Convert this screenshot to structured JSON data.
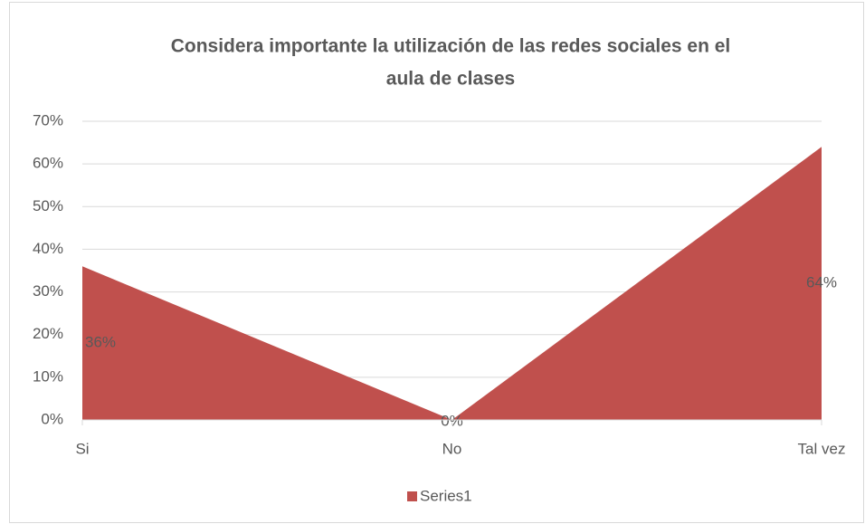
{
  "chart_data": {
    "type": "area",
    "title": [
      "Considera  importante la utilización de las redes sociales  en el",
      "aula de clases"
    ],
    "categories": [
      "Si",
      "No",
      "Tal vez"
    ],
    "series": [
      {
        "name": "Series1",
        "color": "#c0504d",
        "values": [
          36,
          0,
          64
        ],
        "value_labels": [
          "36%",
          "0%",
          "64%"
        ]
      }
    ],
    "ylim": [
      0,
      70
    ],
    "yticks": [
      {
        "value": 0,
        "label": "0%"
      },
      {
        "value": 10,
        "label": "10%"
      },
      {
        "value": 20,
        "label": "20%"
      },
      {
        "value": 30,
        "label": "30%"
      },
      {
        "value": 40,
        "label": "40%"
      },
      {
        "value": 50,
        "label": "50%"
      },
      {
        "value": 60,
        "label": "60%"
      },
      {
        "value": 70,
        "label": "70%"
      }
    ],
    "grid": true,
    "legend": "bottom"
  }
}
